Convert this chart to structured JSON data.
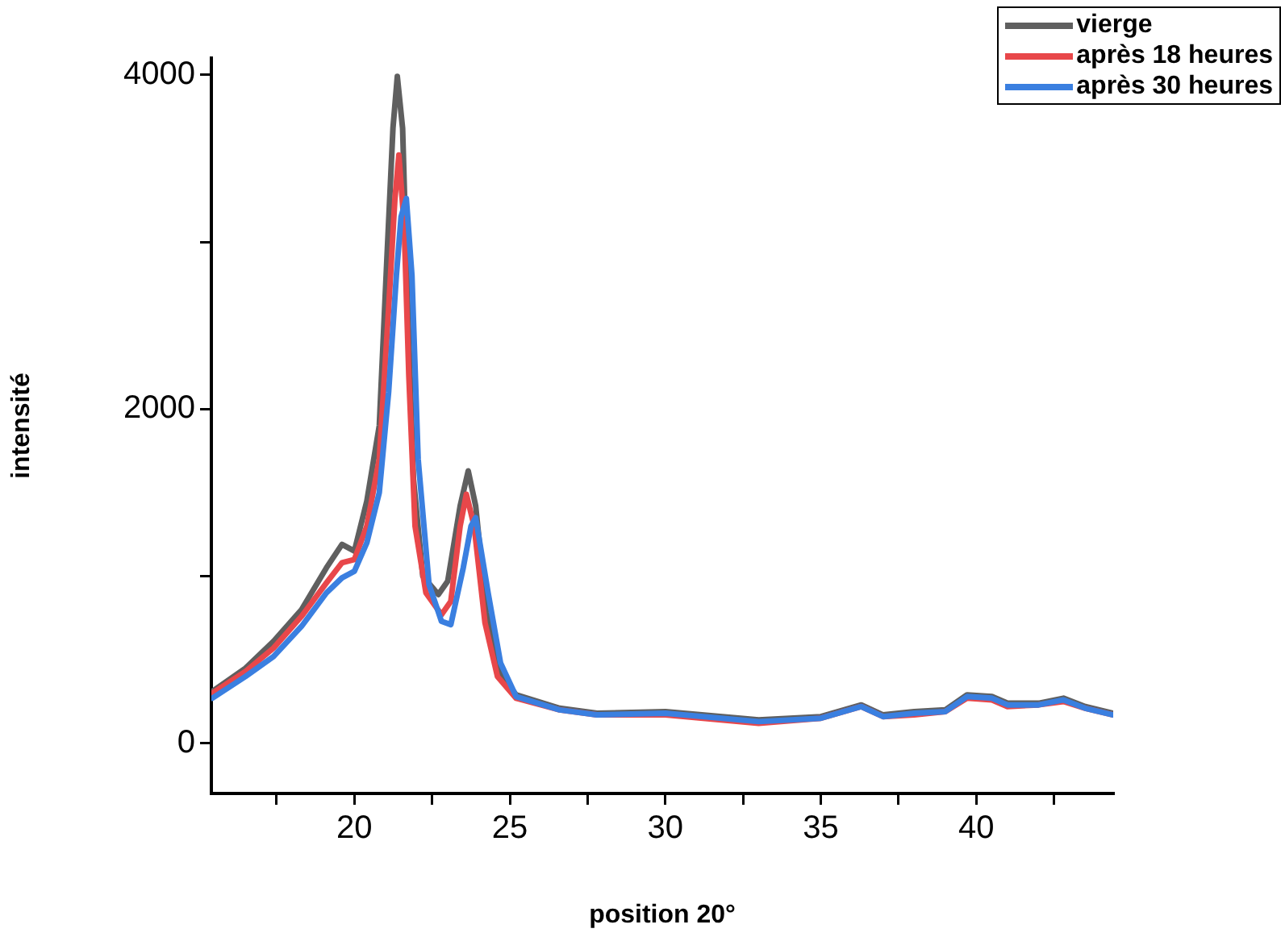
{
  "chart_data": {
    "type": "line",
    "xlabel": "position 20°",
    "ylabel": "intensité",
    "xlim": [
      15.4,
      44.4
    ],
    "ylim": [
      -300,
      4100
    ],
    "xticks": [
      {
        "value": 17.5,
        "label": null
      },
      20,
      {
        "value": 22.5,
        "label": null
      },
      25,
      {
        "value": 27.5,
        "label": null
      },
      30,
      {
        "value": 32.5,
        "label": null
      },
      35,
      {
        "value": 37.5,
        "label": null
      },
      40,
      {
        "value": 42.5,
        "label": null
      }
    ],
    "yticks": [
      0,
      {
        "value": 1000,
        "label": null
      },
      2000,
      {
        "value": 3000,
        "label": null
      },
      4000
    ],
    "grid": false,
    "legend": "top right",
    "marker": "none",
    "line_style": "solid",
    "series": [
      {
        "name": "vierge",
        "color": "#5f5f5f",
        "x": [
          15.43,
          16.5,
          17.4,
          18.3,
          19.1,
          19.6,
          20,
          20.4,
          20.8,
          21.04,
          21.24,
          21.38,
          21.55,
          21.7,
          21.9,
          22.2,
          22.7,
          23,
          23.4,
          23.66,
          23.9,
          24.25,
          24.66,
          25.2,
          26.6,
          27.8,
          30,
          33,
          35,
          36.3,
          37,
          38,
          39,
          39.7,
          40.5,
          41,
          42,
          42.8,
          43.5,
          44.4
        ],
        "values": [
          310,
          450,
          610,
          800,
          1050,
          1190,
          1150,
          1450,
          1900,
          2880,
          3680,
          3990,
          3680,
          2710,
          1580,
          1000,
          890,
          970,
          1420,
          1630,
          1420,
          780,
          420,
          290,
          210,
          180,
          190,
          140,
          160,
          230,
          170,
          190,
          200,
          290,
          280,
          240,
          240,
          270,
          220,
          180
        ]
      },
      {
        "name": "après 18 heures",
        "color": "#e8474a",
        "x": [
          15.43,
          16.5,
          17.4,
          18.3,
          19.1,
          19.6,
          20,
          20.4,
          20.8,
          21.1,
          21.3,
          21.43,
          21.6,
          21.75,
          21.95,
          22.3,
          22.8,
          23.1,
          23.4,
          23.6,
          23.85,
          24.2,
          24.6,
          25.2,
          26.6,
          27.8,
          30,
          33,
          35,
          36.3,
          37,
          38,
          39,
          39.7,
          40.5,
          41,
          42,
          42.8,
          43.5,
          44.4
        ],
        "values": [
          300,
          430,
          570,
          760,
          960,
          1080,
          1100,
          1300,
          1700,
          2600,
          3250,
          3520,
          3100,
          2200,
          1300,
          900,
          770,
          850,
          1300,
          1490,
          1300,
          720,
          400,
          270,
          200,
          170,
          170,
          120,
          150,
          220,
          160,
          170,
          190,
          270,
          260,
          220,
          230,
          250,
          210,
          170
        ]
      },
      {
        "name": "après 30 heures",
        "color": "#3a7fe0",
        "x": [
          15.43,
          16.5,
          17.4,
          18.3,
          19.1,
          19.6,
          20,
          20.4,
          20.8,
          21.1,
          21.35,
          21.5,
          21.67,
          21.85,
          22.05,
          22.4,
          22.8,
          23.1,
          23.5,
          23.75,
          23.9,
          24.3,
          24.7,
          25.2,
          26.6,
          27.8,
          30,
          33,
          35,
          36.3,
          37,
          38,
          39,
          39.7,
          40.5,
          41,
          42,
          42.8,
          43.5,
          44.4
        ],
        "values": [
          270,
          400,
          520,
          700,
          900,
          990,
          1030,
          1200,
          1500,
          2100,
          2800,
          3150,
          3260,
          2800,
          1700,
          950,
          730,
          710,
          1050,
          1300,
          1350,
          900,
          480,
          280,
          200,
          170,
          180,
          130,
          150,
          220,
          160,
          180,
          190,
          280,
          270,
          230,
          230,
          260,
          210,
          170
        ]
      }
    ]
  }
}
